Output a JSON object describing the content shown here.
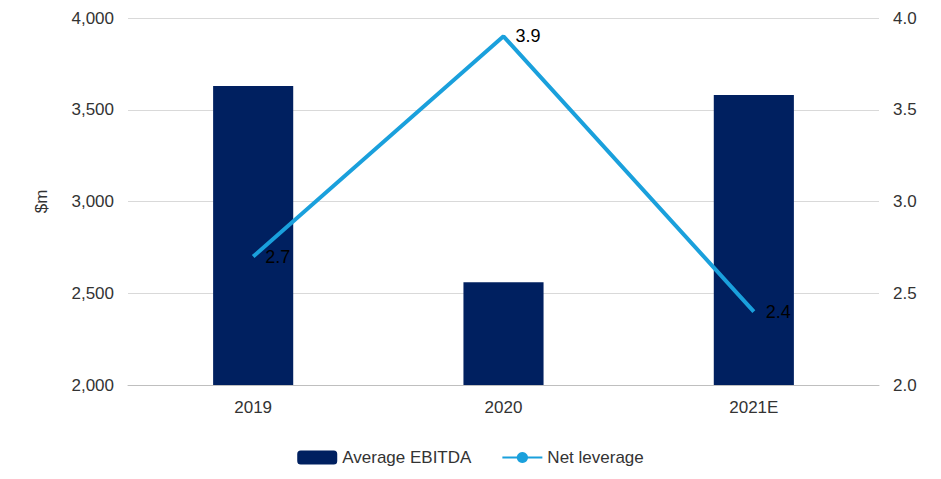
{
  "chart_data": {
    "type": "bar",
    "categories": [
      "2019",
      "2020",
      "2021E"
    ],
    "y_label": "$m",
    "ylim": [
      2000,
      4000
    ],
    "yticks": [
      {
        "value": 2000,
        "label": "2,000"
      },
      {
        "value": 2500,
        "label": "2,500"
      },
      {
        "value": 3000,
        "label": "3,000"
      },
      {
        "value": 3500,
        "label": "3,500"
      },
      {
        "value": 4000,
        "label": "4,000"
      }
    ],
    "y2lim": [
      2.0,
      4.0
    ],
    "y2ticks": [
      {
        "value": 2.0,
        "label": "2.0"
      },
      2.5,
      {
        "value": 3.0,
        "label": "3.0"
      },
      3.5,
      {
        "value": 4.0,
        "label": "4.0"
      }
    ],
    "grid": true,
    "legend": "bottom",
    "series": [
      {
        "name": "Average EBITDA",
        "type": "bar",
        "color": "#002060",
        "values": [
          3630,
          2560,
          3580
        ]
      },
      {
        "name": "Net leverage",
        "type": "line",
        "axis": "y2",
        "color": "#1aa0dc",
        "values": [
          2.7,
          3.9,
          2.4
        ],
        "data_labels": true
      }
    ]
  }
}
